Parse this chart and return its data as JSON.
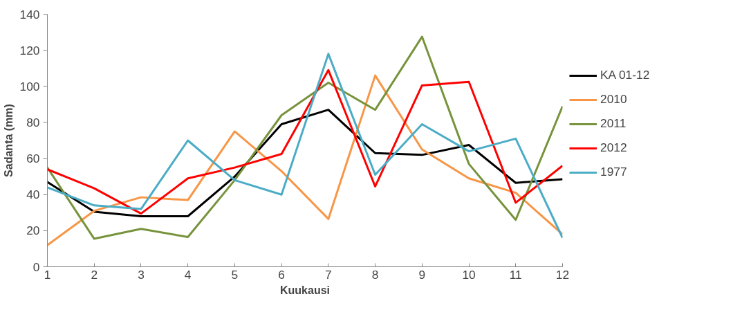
{
  "chart_data": {
    "type": "line",
    "xlabel": "Kuukausi",
    "ylabel": "Sadanta (mm)",
    "x": [
      1,
      2,
      3,
      4,
      5,
      6,
      7,
      8,
      9,
      10,
      11,
      12
    ],
    "xlim": [
      1,
      12
    ],
    "xticks": [
      1,
      2,
      3,
      4,
      5,
      6,
      7,
      8,
      9,
      10,
      11,
      12
    ],
    "ylim": [
      0,
      140
    ],
    "yticks": [
      0,
      20,
      40,
      60,
      80,
      100,
      120,
      140
    ],
    "grid": false,
    "legend": "right",
    "marker": "none",
    "line_style": "solid",
    "series": [
      {
        "name": "KA 01-12",
        "color": "#000000",
        "values": [
          47,
          30.5,
          28,
          28,
          50,
          79,
          87,
          63,
          62,
          67.5,
          46.5,
          48.5
        ]
      },
      {
        "name": "2010",
        "color": "#f79646",
        "values": [
          12,
          31,
          38.5,
          37,
          75,
          53,
          26.5,
          106,
          65,
          49,
          41,
          18
        ]
      },
      {
        "name": "2011",
        "color": "#77933c",
        "values": [
          55,
          15.5,
          21,
          16.5,
          48,
          84,
          102,
          87,
          127.5,
          57,
          26,
          89
        ]
      },
      {
        "name": "2012",
        "color": "#ff0000",
        "values": [
          54,
          43.5,
          29.5,
          49,
          55,
          62.5,
          109,
          44.5,
          100.5,
          102.5,
          35.5,
          56
        ]
      },
      {
        "name": "1977",
        "color": "#4bacc6",
        "values": [
          44,
          34,
          32,
          70,
          48,
          40,
          118,
          51,
          79,
          64,
          71,
          16
        ]
      }
    ]
  }
}
